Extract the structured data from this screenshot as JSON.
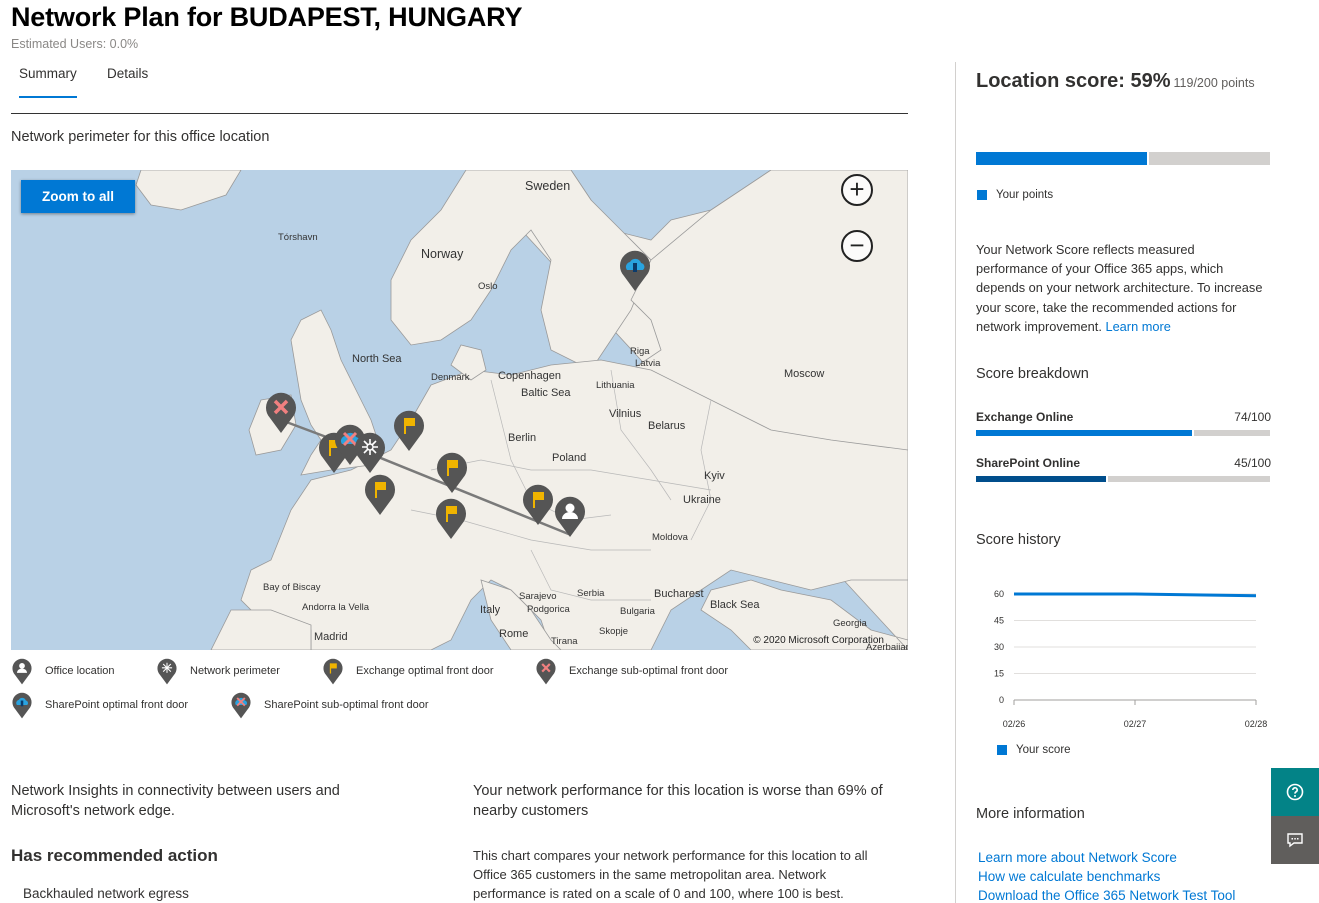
{
  "header": {
    "title": "Network Plan for BUDAPEST, HUNGARY",
    "subtitle": "Estimated Users: 0.0%"
  },
  "tabs": [
    {
      "label": "Summary",
      "active": true
    },
    {
      "label": "Details",
      "active": false
    }
  ],
  "map": {
    "section_label": "Network perimeter for this office location",
    "zoom_all_label": "Zoom to all",
    "zoom_in_symbol": "+",
    "zoom_out_symbol": "−",
    "copyright": "© 2020 Microsoft Corporation",
    "labels": {
      "sweden": "Sweden",
      "torshavn": "Tórshavn",
      "norway": "Norway",
      "oslo": "Oslo",
      "north_sea": "North Sea",
      "denmark": "Denmark",
      "copenhagen": "Copenhagen",
      "baltic_sea": "Baltic Sea",
      "riga": "Riga",
      "latvia": "Latvia",
      "lithuania": "Lithuania",
      "moscow": "Moscow",
      "vilnius": "Vilnius",
      "belarus": "Belarus",
      "berlin": "Berlin",
      "poland": "Poland",
      "kyiv": "Kyiv",
      "ukraine": "Ukraine",
      "moldova": "Moldova",
      "bay_of_biscay": "Bay of Biscay",
      "andorra": "Andorra la Vella",
      "sarajevo": "Sarajevo",
      "serbia": "Serbia",
      "podgorica": "Podgorica",
      "bucharest": "Bucharest",
      "bulgaria": "Bulgaria",
      "black_sea": "Black Sea",
      "italy": "Italy",
      "madrid": "Madrid",
      "rome": "Rome",
      "tirana": "Tirana",
      "skopje": "Skopje",
      "georgia": "Georgia",
      "azerbaijan": "Azerbaijan"
    }
  },
  "legend": [
    {
      "label": "Office location",
      "icon": "person-pin-icon"
    },
    {
      "label": "Network perimeter",
      "icon": "network-pin-icon"
    },
    {
      "label": "Exchange optimal front door",
      "icon": "flag-pin-icon"
    },
    {
      "label": "Exchange sub-optimal front door",
      "icon": "x-pin-icon"
    },
    {
      "label": "SharePoint optimal front door",
      "icon": "cloud-pin-icon"
    },
    {
      "label": "SharePoint sub-optimal front door",
      "icon": "cloud-x-pin-icon"
    }
  ],
  "insights": {
    "left_text": "Network Insights in connectivity between users and Microsoft's network edge.",
    "recommended_heading": "Has recommended action",
    "recommended_item": "Backhauled network egress",
    "right_heading": "Your network performance for this location is worse than 69% of nearby customers",
    "right_description": "This chart compares your network performance for this location to all Office 365 customers in the same metropolitan area. Network performance is rated on a scale of 0 and 100, where 100 is best."
  },
  "score": {
    "title": "Location score: 59%",
    "points": "119/200 points",
    "percent": 59,
    "legend_label": "Your points",
    "description": "Your Network Score reflects measured performance of your Office 365 apps, which depends on your network architecture. To increase your score, take the recommended actions for network improvement.",
    "learn_more": "Learn more",
    "accent_color": "#0078d4"
  },
  "breakdown": {
    "title": "Score breakdown",
    "items": [
      {
        "name": "Exchange Online",
        "value": "74/100",
        "fraction": 0.74,
        "color": "#0078d4"
      },
      {
        "name": "SharePoint Online",
        "value": "45/100",
        "fraction": 0.45,
        "color": "#004e8c"
      }
    ]
  },
  "history": {
    "title": "Score history",
    "legend_label": "Your score",
    "chart_data": {
      "type": "line",
      "x": [
        "02/26",
        "02/27",
        "02/28"
      ],
      "series": [
        {
          "values": [
            60,
            60,
            59
          ]
        }
      ],
      "ylim": [
        0,
        60
      ],
      "yticks": [
        "60",
        "45",
        "30",
        "15",
        "0"
      ],
      "grid": true
    }
  },
  "more_info": {
    "title": "More information",
    "links": [
      "Learn more about Network Score",
      "How we calculate benchmarks",
      "Download the Office 365 Network Test Tool"
    ]
  },
  "side_buttons": {
    "help_color": "#038387",
    "feedback_color": "#605e5c"
  }
}
